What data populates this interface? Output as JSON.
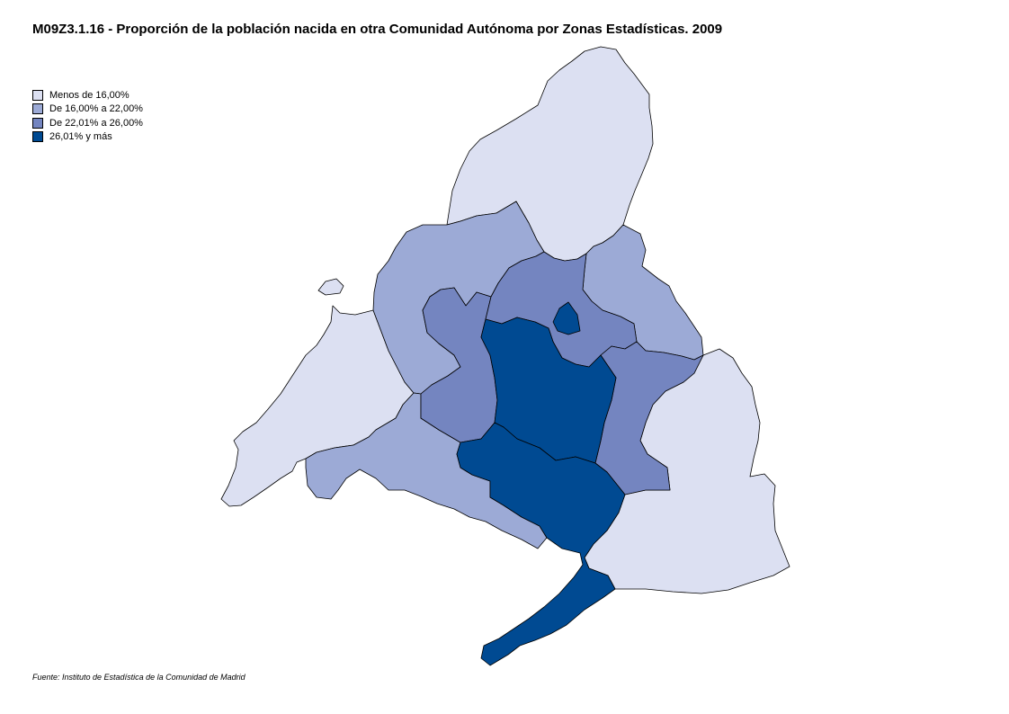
{
  "title": "M09Z3.1.16 - Proporción de la población nacida en otra Comunidad Autónoma por Zonas Estadísticas. 2009",
  "legend": [
    {
      "label": "Menos de 16,00%",
      "color": "#dce0f2"
    },
    {
      "label": "De 16,00% a 22,00%",
      "color": "#9caad6"
    },
    {
      "label": "De 22,01%  a 26,00%",
      "color": "#7485c0"
    },
    {
      "label": "26,01% y más",
      "color": "#004a92"
    }
  ],
  "zones": [
    {
      "id": "sierra-norte",
      "class": 0
    },
    {
      "id": "sudoeste",
      "class": 0
    },
    {
      "id": "este",
      "class": 0
    },
    {
      "id": "sierra-guadarrama",
      "class": 1
    },
    {
      "id": "nordeste",
      "class": 1
    },
    {
      "id": "oeste-sur",
      "class": 1
    },
    {
      "id": "noroeste",
      "class": 2
    },
    {
      "id": "norte-metropolitano",
      "class": 2
    },
    {
      "id": "este-metropolitano",
      "class": 2
    },
    {
      "id": "madrid-municipio",
      "class": 3
    },
    {
      "id": "sur-metropolitano",
      "class": 3
    },
    {
      "id": "tres-cantos",
      "class": 3
    }
  ],
  "source": "Fuente: Instituto de Estadística de la Comunidad de Madrid"
}
